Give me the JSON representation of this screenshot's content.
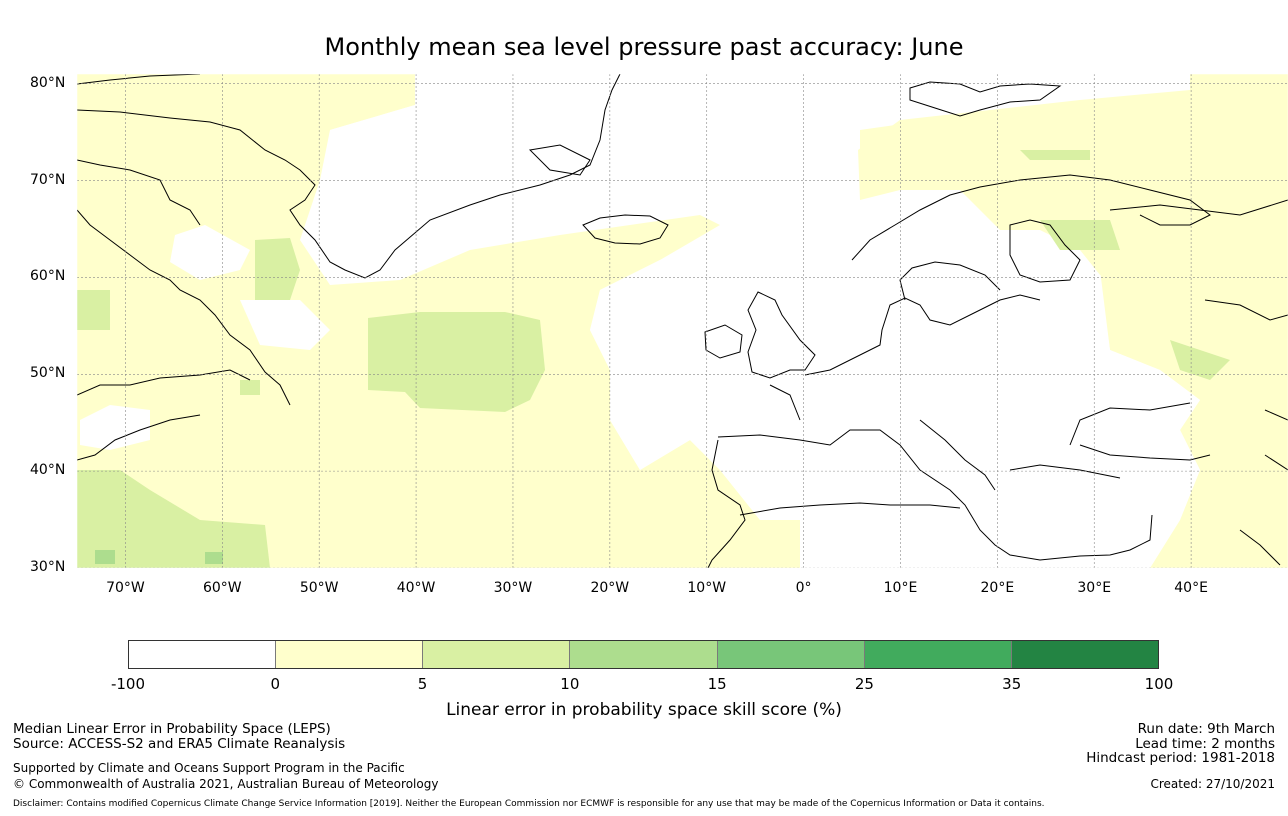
{
  "title": "Monthly mean sea level pressure past accuracy: June",
  "chart_data": {
    "type": "heatmap",
    "title": "Monthly mean sea level pressure past accuracy: June",
    "variable": "Linear error in probability space skill score (%)",
    "lon_range": [
      -75,
      50
    ],
    "lat_range": [
      30,
      81
    ],
    "lat_ticks": [
      "80°N",
      "70°N",
      "60°N",
      "50°N",
      "40°N",
      "30°N"
    ],
    "lat_values": [
      80,
      70,
      60,
      50,
      40,
      30
    ],
    "lon_ticks": [
      "70°W",
      "60°W",
      "50°W",
      "40°W",
      "30°W",
      "20°W",
      "10°W",
      "0°",
      "10°E",
      "20°E",
      "30°E",
      "40°E"
    ],
    "lon_values": [
      -70,
      -60,
      -50,
      -40,
      -30,
      -20,
      -10,
      0,
      10,
      20,
      30,
      40
    ],
    "colorbar": {
      "bounds": [
        "-100",
        "0",
        "5",
        "10",
        "15",
        "25",
        "35",
        "100"
      ],
      "colors": [
        "#ffffff",
        "#ffffcc",
        "#d9f0a3",
        "#addd8e",
        "#78c679",
        "#41ab5d",
        "#238443"
      ],
      "label": "Linear error in probability space skill score (%)"
    },
    "regions": [
      {
        "name": "far west Atlantic and North America",
        "lon": [
          -75,
          -55
        ],
        "lat": [
          30,
          80
        ],
        "class": "0-5 with patches 5-10"
      },
      {
        "name": "central North Atlantic",
        "lon": [
          -45,
          -26
        ],
        "lat": [
          46,
          56
        ],
        "class": "5-10"
      },
      {
        "name": "subtropical Atlantic",
        "lon": [
          -55,
          -10
        ],
        "lat": [
          30,
          45
        ],
        "class": "0-5"
      },
      {
        "name": "Norwegian Sea and Scandinavia north",
        "lon": [
          0,
          50
        ],
        "lat": [
          62,
          81
        ],
        "class": "0-5"
      },
      {
        "name": "Europe and Mediterranean",
        "lon": [
          -10,
          35
        ],
        "lat": [
          30,
          60
        ],
        "class": "-100-0"
      },
      {
        "name": "Russia east",
        "lon": [
          38,
          50
        ],
        "lat": [
          40,
          66
        ],
        "class": "0-5"
      }
    ]
  },
  "footer": {
    "left1": "Median Linear Error in Probability Space (LEPS)",
    "left2": "Source: ACCESS-S2 and ERA5 Climate Reanalysis",
    "left3": "Supported by Climate and Oceans Support Program in the Pacific",
    "left4": "© Commonwealth of Australia 2021, Australian Bureau of Meteorology",
    "run_date": "Run date: 9th March",
    "lead_time": "Lead time: 2 months",
    "hindcast": "Hindcast period: 1981-2018",
    "created": "Created: 27/10/2021",
    "disclaimer": "Disclaimer: Contains modified Copernicus Climate Change Service Information [2019]. Neither the European Commission nor ECMWF is responsible for any use that may be made of the Copernicus Information or Data it contains."
  }
}
